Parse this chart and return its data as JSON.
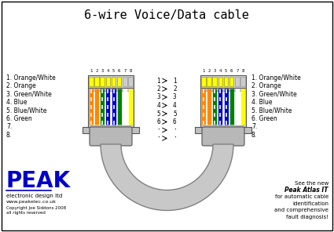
{
  "title": "6-wire Voice/Data cable",
  "title_font": "monospace",
  "title_size": 11,
  "bg_color": "#ffffff",
  "border_color": "#000000",
  "wire_colors_main": [
    "#ff8800",
    "#ff8800",
    "#008000",
    "#0000cc",
    "#0000cc",
    "#008000",
    "#ffffff",
    "#ffff00"
  ],
  "wire_colors_stripe": [
    "#ffffff",
    null,
    "#ffffff",
    "#ffffff",
    "#ffffff",
    null,
    null,
    null
  ],
  "labels_left": [
    "1. Orange/White",
    "2. Orange",
    "3. Green/White",
    "4. Blue",
    "5. Blue/White",
    "6. Green",
    "7.",
    "8."
  ],
  "labels_right": [
    "1. Orange/White",
    "2. Orange",
    "3. Green/White",
    "4. Blue",
    "5. Blue/White",
    "6. Green",
    "7.",
    "8."
  ],
  "peak_text": "PEAK",
  "peak_sub1": "electronic design ltd",
  "peak_sub2": "www.peakelec.co.uk",
  "peak_sub3": "Copyright Joe Siddons 2008",
  "peak_sub4": "all rights reserved",
  "ad_line1": "See the new",
  "ad_line2": "Peak Atlas IT",
  "ad_line3": "for automatic cable",
  "ad_line4": "identification",
  "ad_line5": "and comprehensive",
  "ad_line6": "fault diagnosis!"
}
